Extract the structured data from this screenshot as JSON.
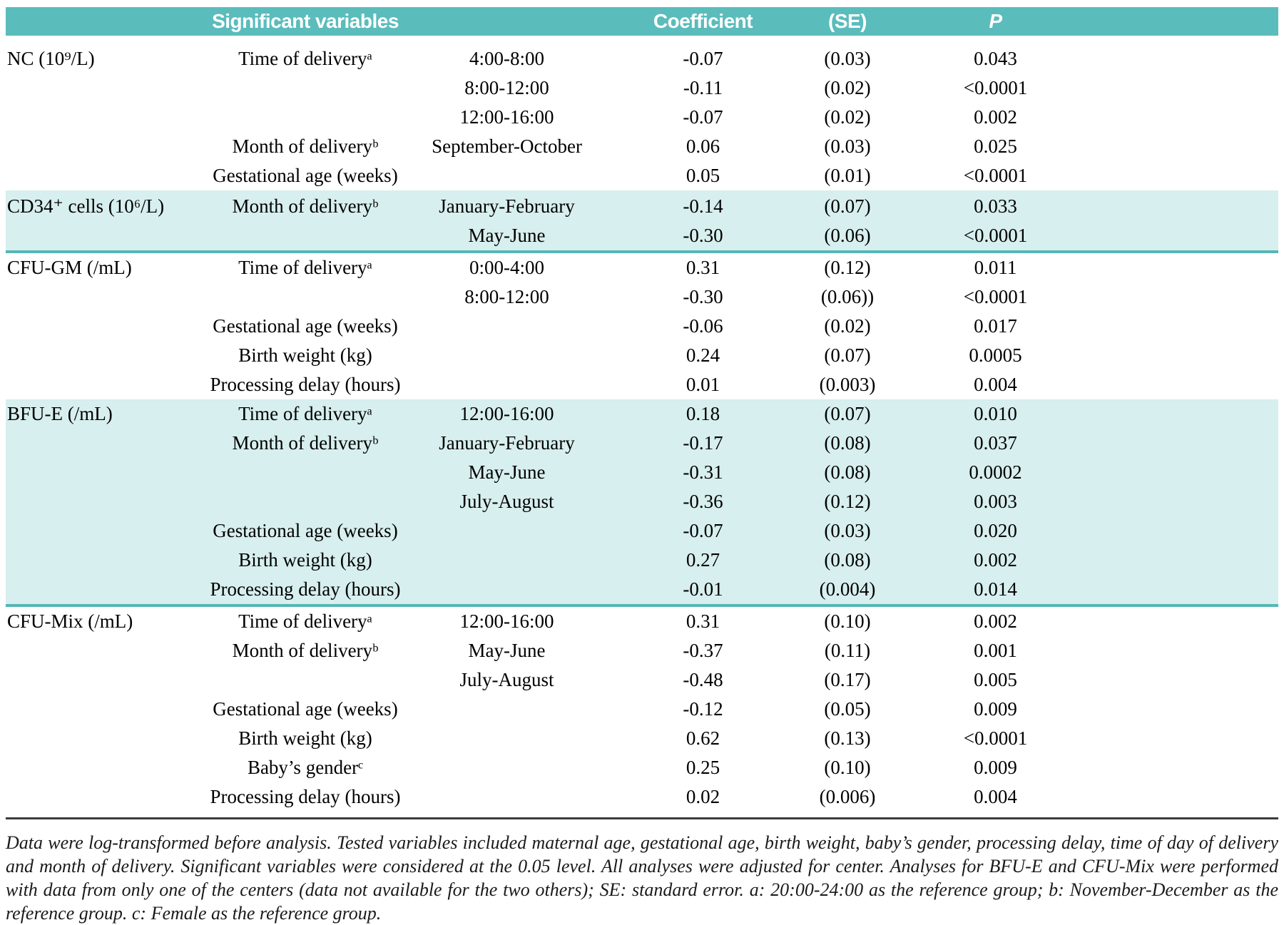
{
  "colors": {
    "header_bg": "#5bbcbc",
    "header_text": "#ffffff",
    "band_bg": "#d7efee",
    "band_rule": "#55b6b6",
    "bottom_rule": "#3c3c3c"
  },
  "table": {
    "headers": {
      "significant_variables": "Significant variables",
      "coefficient": "Coefficient",
      "se": "(SE)",
      "p": "P"
    },
    "sections": [
      {
        "outcome": "NC (10⁹/L)",
        "banded": false,
        "rows": [
          {
            "variable": "Time of deliveryᵃ",
            "level": "4:00-8:00",
            "coefficient": "-0.07",
            "se": "(0.03)",
            "p": "0.043"
          },
          {
            "variable": "",
            "level": "8:00-12:00",
            "coefficient": "-0.11",
            "se": "(0.02)",
            "p": "<0.0001"
          },
          {
            "variable": "",
            "level": "12:00-16:00",
            "coefficient": "-0.07",
            "se": "(0.02)",
            "p": "0.002"
          },
          {
            "variable": "Month of deliveryᵇ",
            "level": "September-October",
            "coefficient": "0.06",
            "se": "(0.03)",
            "p": "0.025"
          },
          {
            "variable": "Gestational age (weeks)",
            "level": "",
            "coefficient": "0.05",
            "se": "(0.01)",
            "p": "<0.0001"
          }
        ]
      },
      {
        "outcome": "CD34⁺ cells (10⁶/L)",
        "banded": true,
        "rows": [
          {
            "variable": "Month of deliveryᵇ",
            "level": "January-February",
            "coefficient": "-0.14",
            "se": "(0.07)",
            "p": "0.033"
          },
          {
            "variable": "",
            "level": "May-June",
            "coefficient": "-0.30",
            "se": "(0.06)",
            "p": "<0.0001"
          }
        ]
      },
      {
        "outcome": "CFU-GM (/mL)",
        "banded": false,
        "rows": [
          {
            "variable": "Time of deliveryᵃ",
            "level": "0:00-4:00",
            "coefficient": "0.31",
            "se": "(0.12)",
            "p": "0.011"
          },
          {
            "variable": "",
            "level": "8:00-12:00",
            "coefficient": "-0.30",
            "se": "(0.06))",
            "p": "<0.0001"
          },
          {
            "variable": "Gestational age (weeks)",
            "level": "",
            "coefficient": "-0.06",
            "se": "(0.02)",
            "p": "0.017"
          },
          {
            "variable": "Birth weight (kg)",
            "level": "",
            "coefficient": "0.24",
            "se": "(0.07)",
            "p": "0.0005"
          },
          {
            "variable": "Processing delay (hours)",
            "level": "",
            "coefficient": "0.01",
            "se": "(0.003)",
            "p": "0.004"
          }
        ]
      },
      {
        "outcome": "BFU-E (/mL)",
        "banded": true,
        "rows": [
          {
            "variable": "Time of deliveryᵃ",
            "level": "12:00-16:00",
            "coefficient": "0.18",
            "se": "(0.07)",
            "p": "0.010"
          },
          {
            "variable": "Month of deliveryᵇ",
            "level": "January-February",
            "coefficient": "-0.17",
            "se": "(0.08)",
            "p": "0.037"
          },
          {
            "variable": "",
            "level": "May-June",
            "coefficient": "-0.31",
            "se": "(0.08)",
            "p": "0.0002"
          },
          {
            "variable": "",
            "level": "July-August",
            "coefficient": "-0.36",
            "se": "(0.12)",
            "p": "0.003"
          },
          {
            "variable": "Gestational age (weeks)",
            "level": "",
            "coefficient": "-0.07",
            "se": "(0.03)",
            "p": "0.020"
          },
          {
            "variable": "Birth weight (kg)",
            "level": "",
            "coefficient": "0.27",
            "se": "(0.08)",
            "p": "0.002"
          },
          {
            "variable": "Processing delay (hours)",
            "level": "",
            "coefficient": "-0.01",
            "se": "(0.004)",
            "p": "0.014"
          }
        ]
      },
      {
        "outcome": "CFU-Mix (/mL)",
        "banded": false,
        "rows": [
          {
            "variable": "Time of deliveryᵃ",
            "level": "12:00-16:00",
            "coefficient": "0.31",
            "se": "(0.10)",
            "p": "0.002"
          },
          {
            "variable": "Month of deliveryᵇ",
            "level": "May-June",
            "coefficient": "-0.37",
            "se": "(0.11)",
            "p": "0.001"
          },
          {
            "variable": "",
            "level": "July-August",
            "coefficient": "-0.48",
            "se": "(0.17)",
            "p": "0.005"
          },
          {
            "variable": "Gestational age (weeks)",
            "level": "",
            "coefficient": "-0.12",
            "se": "(0.05)",
            "p": "0.009"
          },
          {
            "variable": "Birth weight (kg)",
            "level": "",
            "coefficient": "0.62",
            "se": "(0.13)",
            "p": "<0.0001"
          },
          {
            "variable": "Baby’s genderᶜ",
            "level": "",
            "coefficient": "0.25",
            "se": "(0.10)",
            "p": "0.009"
          },
          {
            "variable": "Processing delay (hours)",
            "level": "",
            "coefficient": "0.02",
            "se": "(0.006)",
            "p": "0.004"
          }
        ]
      }
    ]
  },
  "footnote": {
    "text": "Data were log-transformed before analysis. Tested variables included maternal age, gestational age, birth weight, baby’s gender, processing delay, time of day of delivery and month of delivery. Significant variables were considered at the 0.05 level. All analyses were adjusted for center. Analyses for BFU-E and CFU-Mix were performed with data from only one of the centers (data not available for the two others); SE: standard error. a: 20:00-24:00 as the reference group; b: November-December as the reference group. c: Female as the reference group."
  }
}
